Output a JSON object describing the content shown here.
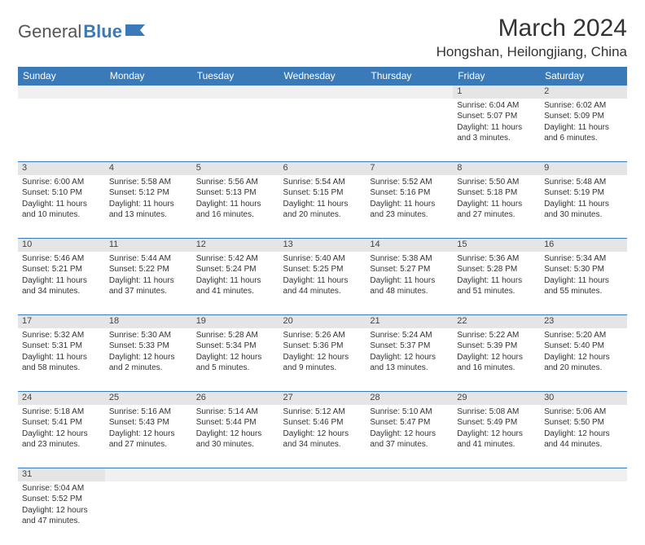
{
  "logo": {
    "text1": "General",
    "text2": "Blue"
  },
  "title": "March 2024",
  "location": "Hongshan, Heilongjiang, China",
  "header_bg": "#3a7ab8",
  "daynum_bg": "#e5e5e5",
  "days": [
    "Sunday",
    "Monday",
    "Tuesday",
    "Wednesday",
    "Thursday",
    "Friday",
    "Saturday"
  ],
  "weeks": [
    [
      null,
      null,
      null,
      null,
      null,
      {
        "n": "1",
        "sr": "Sunrise: 6:04 AM",
        "ss": "Sunset: 5:07 PM",
        "dl": "Daylight: 11 hours and 3 minutes."
      },
      {
        "n": "2",
        "sr": "Sunrise: 6:02 AM",
        "ss": "Sunset: 5:09 PM",
        "dl": "Daylight: 11 hours and 6 minutes."
      }
    ],
    [
      {
        "n": "3",
        "sr": "Sunrise: 6:00 AM",
        "ss": "Sunset: 5:10 PM",
        "dl": "Daylight: 11 hours and 10 minutes."
      },
      {
        "n": "4",
        "sr": "Sunrise: 5:58 AM",
        "ss": "Sunset: 5:12 PM",
        "dl": "Daylight: 11 hours and 13 minutes."
      },
      {
        "n": "5",
        "sr": "Sunrise: 5:56 AM",
        "ss": "Sunset: 5:13 PM",
        "dl": "Daylight: 11 hours and 16 minutes."
      },
      {
        "n": "6",
        "sr": "Sunrise: 5:54 AM",
        "ss": "Sunset: 5:15 PM",
        "dl": "Daylight: 11 hours and 20 minutes."
      },
      {
        "n": "7",
        "sr": "Sunrise: 5:52 AM",
        "ss": "Sunset: 5:16 PM",
        "dl": "Daylight: 11 hours and 23 minutes."
      },
      {
        "n": "8",
        "sr": "Sunrise: 5:50 AM",
        "ss": "Sunset: 5:18 PM",
        "dl": "Daylight: 11 hours and 27 minutes."
      },
      {
        "n": "9",
        "sr": "Sunrise: 5:48 AM",
        "ss": "Sunset: 5:19 PM",
        "dl": "Daylight: 11 hours and 30 minutes."
      }
    ],
    [
      {
        "n": "10",
        "sr": "Sunrise: 5:46 AM",
        "ss": "Sunset: 5:21 PM",
        "dl": "Daylight: 11 hours and 34 minutes."
      },
      {
        "n": "11",
        "sr": "Sunrise: 5:44 AM",
        "ss": "Sunset: 5:22 PM",
        "dl": "Daylight: 11 hours and 37 minutes."
      },
      {
        "n": "12",
        "sr": "Sunrise: 5:42 AM",
        "ss": "Sunset: 5:24 PM",
        "dl": "Daylight: 11 hours and 41 minutes."
      },
      {
        "n": "13",
        "sr": "Sunrise: 5:40 AM",
        "ss": "Sunset: 5:25 PM",
        "dl": "Daylight: 11 hours and 44 minutes."
      },
      {
        "n": "14",
        "sr": "Sunrise: 5:38 AM",
        "ss": "Sunset: 5:27 PM",
        "dl": "Daylight: 11 hours and 48 minutes."
      },
      {
        "n": "15",
        "sr": "Sunrise: 5:36 AM",
        "ss": "Sunset: 5:28 PM",
        "dl": "Daylight: 11 hours and 51 minutes."
      },
      {
        "n": "16",
        "sr": "Sunrise: 5:34 AM",
        "ss": "Sunset: 5:30 PM",
        "dl": "Daylight: 11 hours and 55 minutes."
      }
    ],
    [
      {
        "n": "17",
        "sr": "Sunrise: 5:32 AM",
        "ss": "Sunset: 5:31 PM",
        "dl": "Daylight: 11 hours and 58 minutes."
      },
      {
        "n": "18",
        "sr": "Sunrise: 5:30 AM",
        "ss": "Sunset: 5:33 PM",
        "dl": "Daylight: 12 hours and 2 minutes."
      },
      {
        "n": "19",
        "sr": "Sunrise: 5:28 AM",
        "ss": "Sunset: 5:34 PM",
        "dl": "Daylight: 12 hours and 5 minutes."
      },
      {
        "n": "20",
        "sr": "Sunrise: 5:26 AM",
        "ss": "Sunset: 5:36 PM",
        "dl": "Daylight: 12 hours and 9 minutes."
      },
      {
        "n": "21",
        "sr": "Sunrise: 5:24 AM",
        "ss": "Sunset: 5:37 PM",
        "dl": "Daylight: 12 hours and 13 minutes."
      },
      {
        "n": "22",
        "sr": "Sunrise: 5:22 AM",
        "ss": "Sunset: 5:39 PM",
        "dl": "Daylight: 12 hours and 16 minutes."
      },
      {
        "n": "23",
        "sr": "Sunrise: 5:20 AM",
        "ss": "Sunset: 5:40 PM",
        "dl": "Daylight: 12 hours and 20 minutes."
      }
    ],
    [
      {
        "n": "24",
        "sr": "Sunrise: 5:18 AM",
        "ss": "Sunset: 5:41 PM",
        "dl": "Daylight: 12 hours and 23 minutes."
      },
      {
        "n": "25",
        "sr": "Sunrise: 5:16 AM",
        "ss": "Sunset: 5:43 PM",
        "dl": "Daylight: 12 hours and 27 minutes."
      },
      {
        "n": "26",
        "sr": "Sunrise: 5:14 AM",
        "ss": "Sunset: 5:44 PM",
        "dl": "Daylight: 12 hours and 30 minutes."
      },
      {
        "n": "27",
        "sr": "Sunrise: 5:12 AM",
        "ss": "Sunset: 5:46 PM",
        "dl": "Daylight: 12 hours and 34 minutes."
      },
      {
        "n": "28",
        "sr": "Sunrise: 5:10 AM",
        "ss": "Sunset: 5:47 PM",
        "dl": "Daylight: 12 hours and 37 minutes."
      },
      {
        "n": "29",
        "sr": "Sunrise: 5:08 AM",
        "ss": "Sunset: 5:49 PM",
        "dl": "Daylight: 12 hours and 41 minutes."
      },
      {
        "n": "30",
        "sr": "Sunrise: 5:06 AM",
        "ss": "Sunset: 5:50 PM",
        "dl": "Daylight: 12 hours and 44 minutes."
      }
    ],
    [
      {
        "n": "31",
        "sr": "Sunrise: 5:04 AM",
        "ss": "Sunset: 5:52 PM",
        "dl": "Daylight: 12 hours and 47 minutes."
      },
      null,
      null,
      null,
      null,
      null,
      null
    ]
  ]
}
